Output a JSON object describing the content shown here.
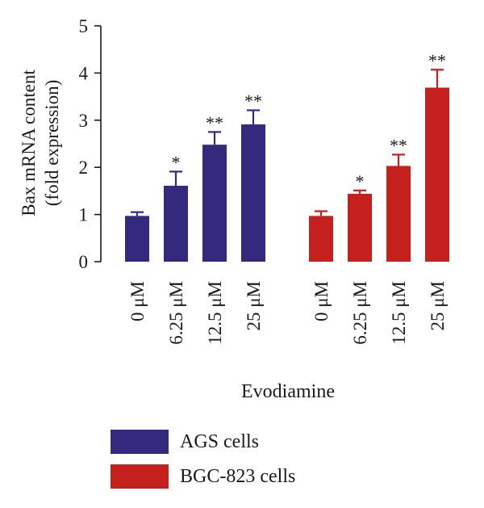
{
  "chart_data": {
    "type": "bar",
    "ylabel_line1": "Bax mRNA content",
    "ylabel_line2": "(fold expression)",
    "xlabel": "Evodiamine",
    "ylim": [
      0,
      5
    ],
    "yticks": [
      "0",
      "1",
      "2",
      "3",
      "4",
      "5"
    ],
    "categories": [
      "0 μM",
      "6.25 μM",
      "12.5 μM",
      "25 μM"
    ],
    "series": [
      {
        "name": "AGS cells",
        "color": "#33297d",
        "values": [
          0.97,
          1.61,
          2.48,
          2.91
        ],
        "errors": [
          0.08,
          0.3,
          0.27,
          0.3
        ],
        "significance": [
          "",
          "*",
          "**",
          "**"
        ]
      },
      {
        "name": "BGC-823 cells",
        "color": "#c4201d",
        "values": [
          0.97,
          1.44,
          2.03,
          3.69
        ],
        "errors": [
          0.1,
          0.07,
          0.24,
          0.38
        ],
        "significance": [
          "",
          "*",
          "**",
          "**"
        ]
      }
    ]
  }
}
